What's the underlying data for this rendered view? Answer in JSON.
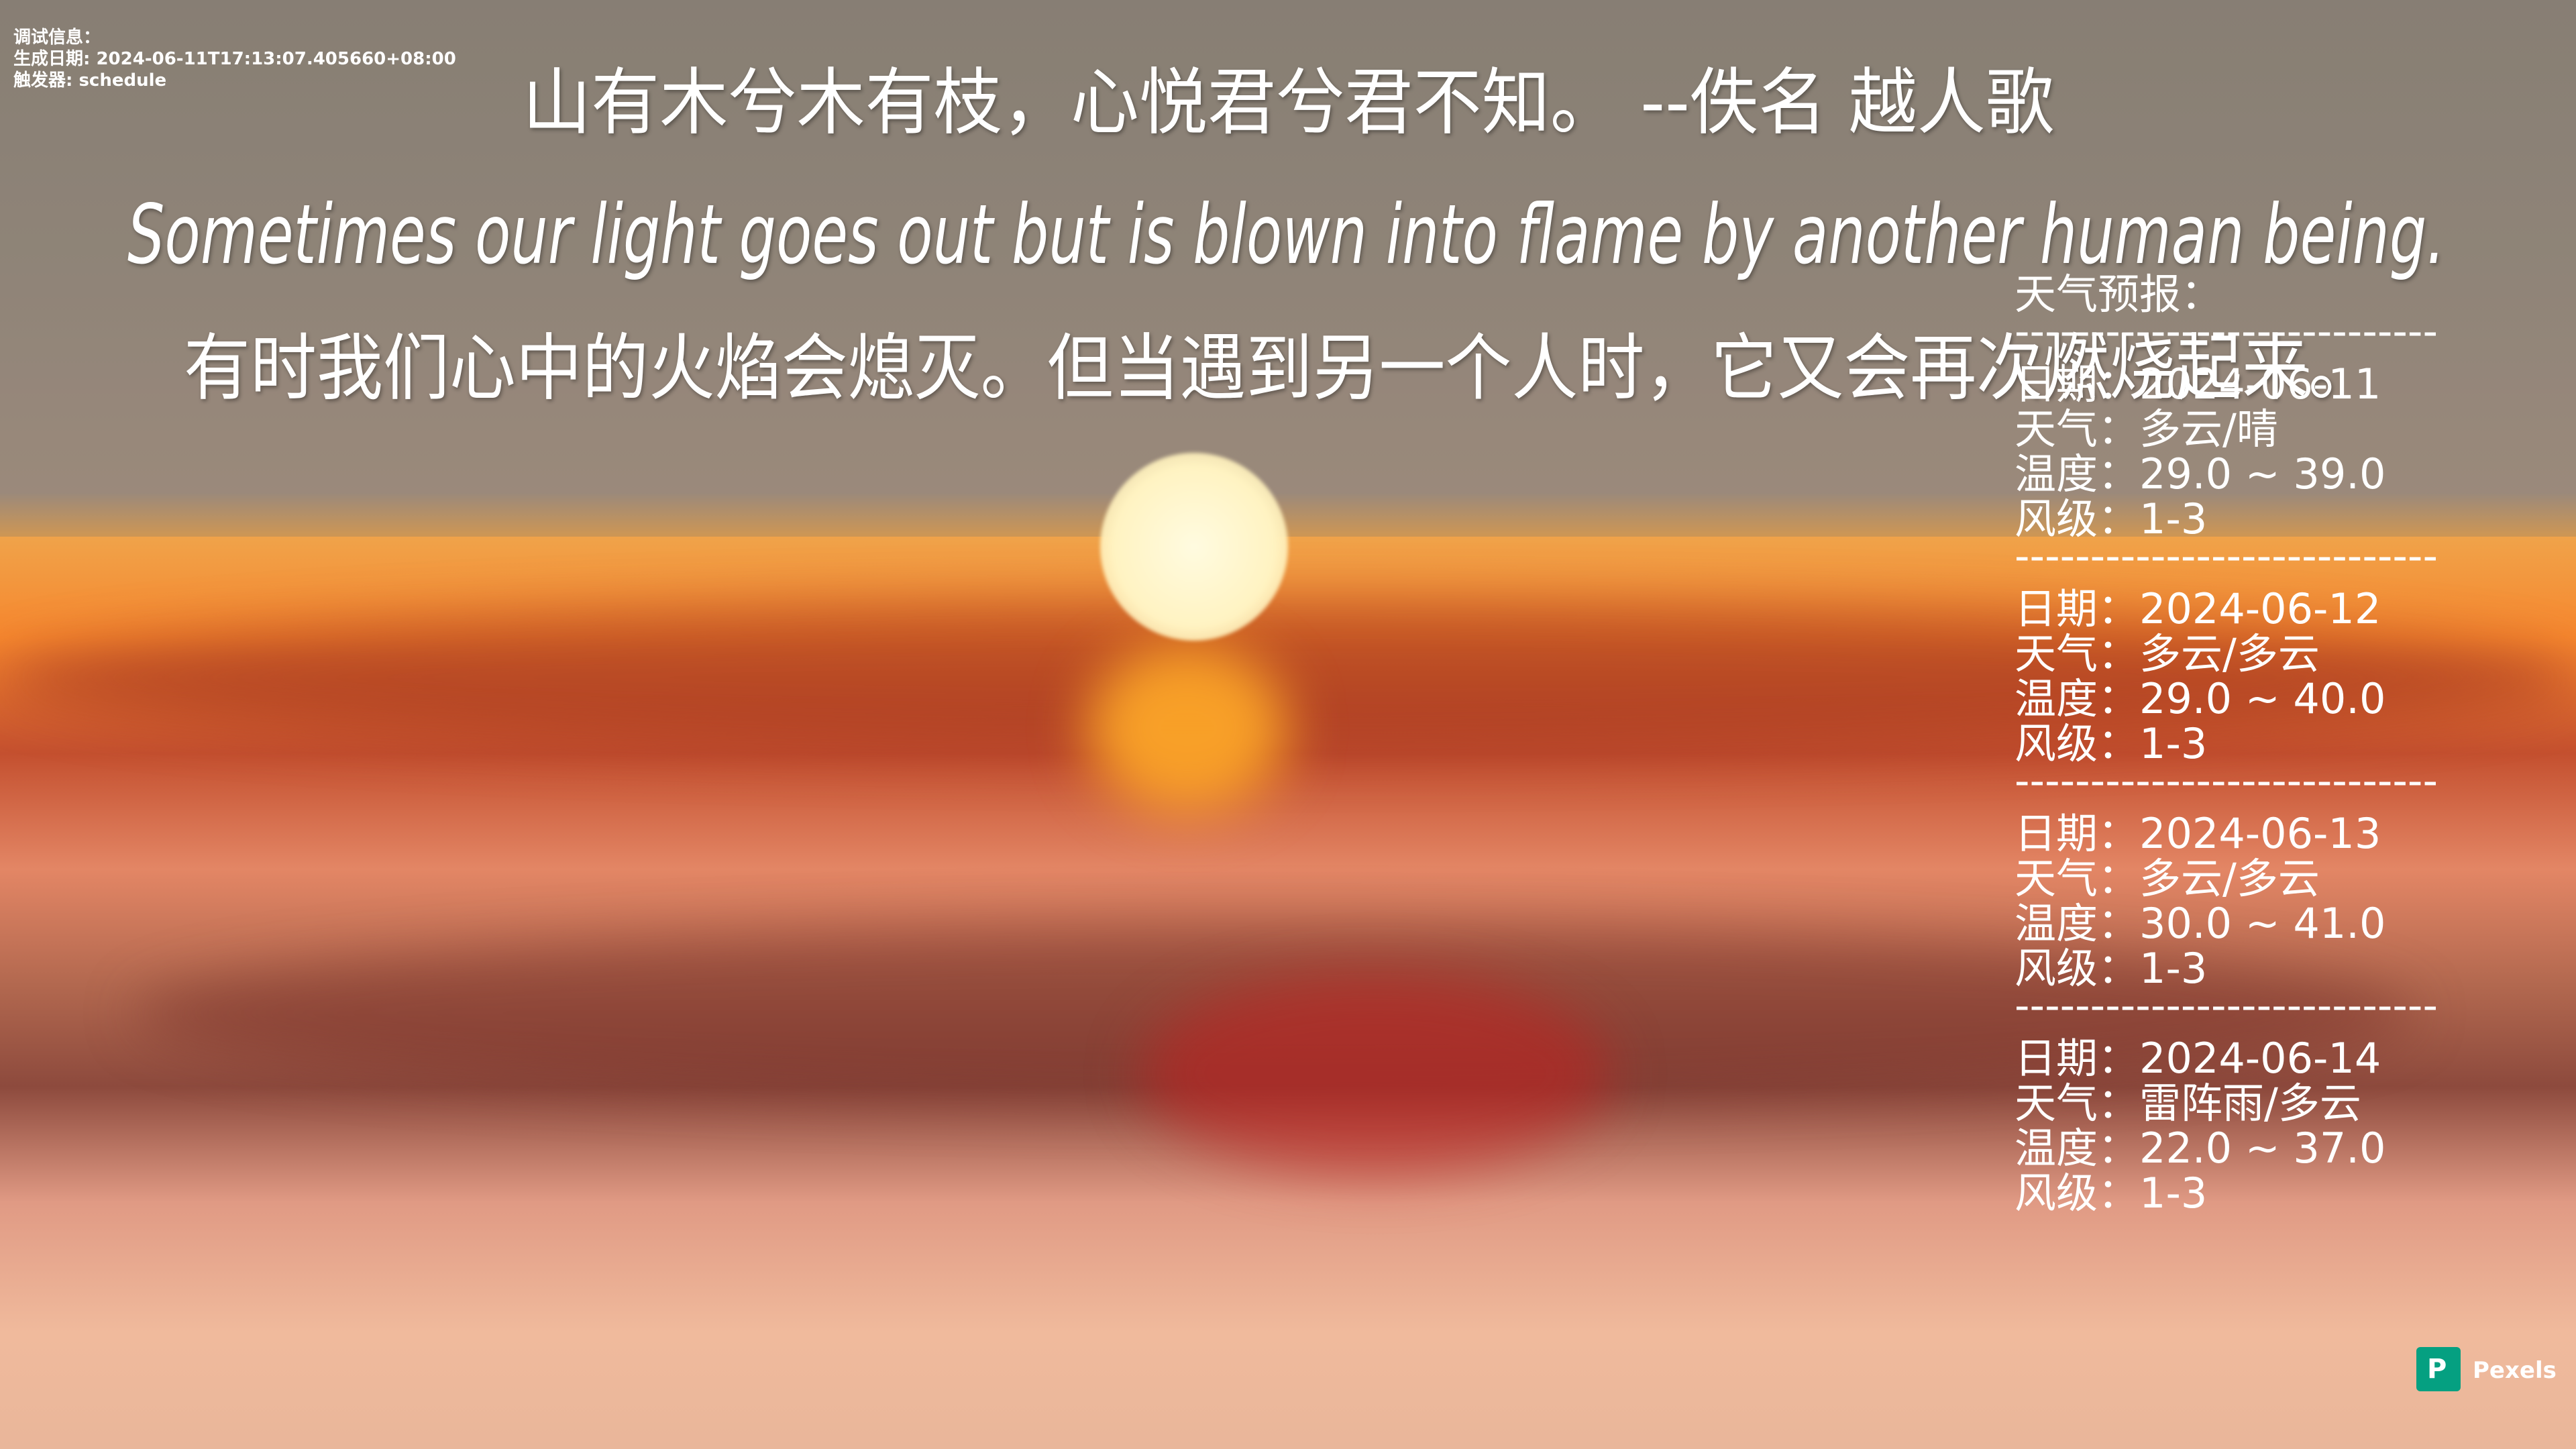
{
  "debug": {
    "title": "调试信息：",
    "generated": "生成日期: 2024-06-11T17:13:07.405660+08:00",
    "trigger": "触发器: schedule"
  },
  "quote": {
    "chinese": "山有木兮木有枝，心悦君兮君不知。  --佚名 越人歌",
    "english": "Sometimes our light goes out but is blown into flame by another human being.",
    "translation": "有时我们心中的火焰会熄灭。但当遇到另一个人时，它又会再次燃烧起来。"
  },
  "weather": {
    "title": "天气预报：",
    "separator": "----------------------------",
    "days": [
      {
        "date": "日期：2024-06-11",
        "weather": "天气：多云/晴",
        "temperature": "温度：29.0 ~ 39.0",
        "wind": "风级：1-3"
      },
      {
        "date": "日期：2024-06-12",
        "weather": "天气：多云/多云",
        "temperature": "温度：29.0 ~ 40.0",
        "wind": "风级：1-3"
      },
      {
        "date": "日期：2024-06-13",
        "weather": "天气：多云/多云",
        "temperature": "温度：30.0 ~ 41.0",
        "wind": "风级：1-3"
      },
      {
        "date": "日期：2024-06-14",
        "weather": "天气：雷阵雨/多云",
        "temperature": "温度：22.0 ~ 37.0",
        "wind": "风级：1-3"
      }
    ]
  },
  "watermark": "Pexels"
}
